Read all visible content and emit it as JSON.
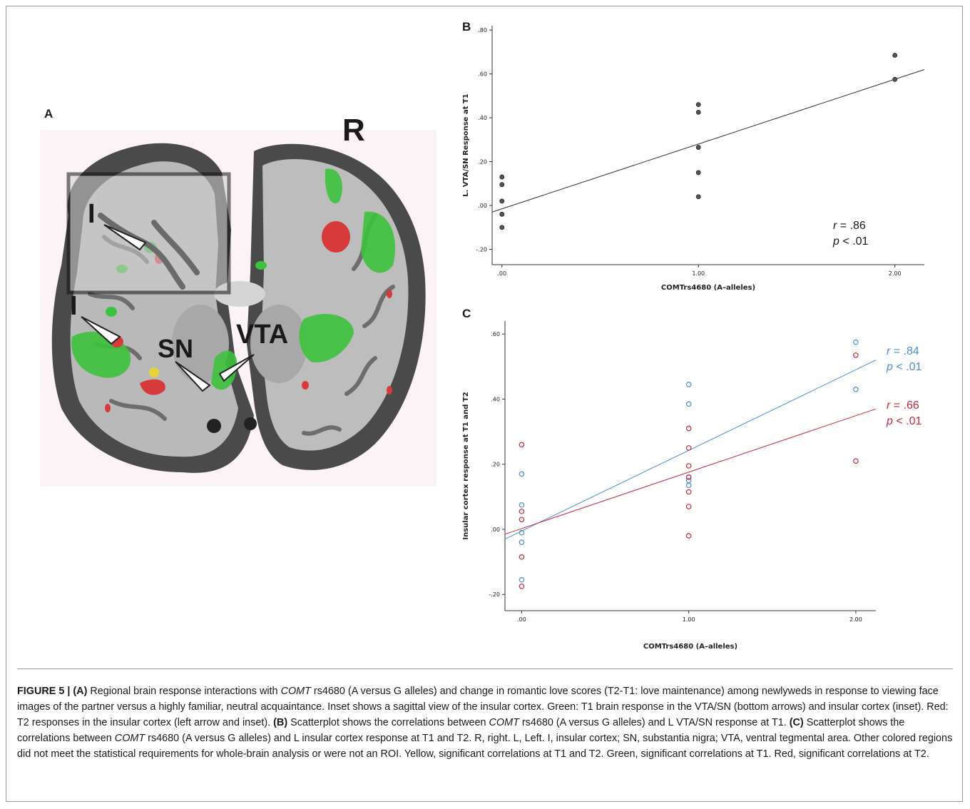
{
  "panels": {
    "a_letter": "A",
    "b_letter": "B",
    "c_letter": "C"
  },
  "brain": {
    "side_label": "R",
    "labels": {
      "insula_inset": "I",
      "insula": "I",
      "sn": "SN",
      "vta": "VTA"
    },
    "colors": {
      "t1": "#3dc23d",
      "t2": "#d63a3a",
      "both": "#e6d33a"
    }
  },
  "chart_data": [
    {
      "type": "scatter",
      "panel": "B",
      "xlabel": "COMTrs4680 (A–alleles)",
      "ylabel": "L. VTA/SN Response at T1",
      "xlim": [
        -0.05,
        2.15
      ],
      "ylim": [
        -0.27,
        0.82
      ],
      "x_ticks": [
        0,
        1,
        2
      ],
      "x_tick_labels": [
        ".00",
        "1.00",
        "2.00"
      ],
      "y_ticks": [
        -0.2,
        0,
        0.2,
        0.4,
        0.6,
        0.8
      ],
      "y_tick_labels": [
        "-.20",
        ".00",
        ".20",
        ".40",
        ".60",
        ".80"
      ],
      "series": [
        {
          "color": "#555555",
          "points": [
            [
              0,
              0.13
            ],
            [
              0,
              0.095
            ],
            [
              0,
              0.02
            ],
            [
              0,
              -0.04
            ],
            [
              0,
              -0.1
            ],
            [
              1,
              0.46
            ],
            [
              1,
              0.425
            ],
            [
              1,
              0.265
            ],
            [
              1,
              0.15
            ],
            [
              1,
              0.04
            ],
            [
              2,
              0.685
            ],
            [
              2,
              0.575
            ]
          ],
          "fit_line": [
            [
              -0.05,
              -0.03
            ],
            [
              2.15,
              0.62
            ]
          ],
          "annotation": {
            "r_label": "r",
            "r_value": " = .86",
            "p_label": "p",
            "p_value": " < .01"
          }
        }
      ]
    },
    {
      "type": "scatter",
      "panel": "C",
      "xlabel": "COMTrs4680 (A–alleles)",
      "ylabel": "Insular cortex response at T1 and T2",
      "xlim": [
        -0.1,
        2.12
      ],
      "ylim": [
        -0.25,
        0.64
      ],
      "x_ticks": [
        0,
        1,
        2
      ],
      "x_tick_labels": [
        ".00",
        "1.00",
        "2.00"
      ],
      "y_ticks": [
        -0.2,
        0,
        0.2,
        0.4,
        0.6
      ],
      "y_tick_labels": [
        "-.20",
        ".00",
        ".20",
        ".40",
        ".60"
      ],
      "series": [
        {
          "color": "#4a8fd6",
          "points": [
            [
              0,
              0.17
            ],
            [
              0,
              0.075
            ],
            [
              0,
              -0.01
            ],
            [
              0,
              -0.04
            ],
            [
              0,
              -0.155
            ],
            [
              1,
              0.445
            ],
            [
              1,
              0.385
            ],
            [
              1,
              0.16
            ],
            [
              1,
              0.15
            ],
            [
              1,
              0.135
            ],
            [
              2,
              0.575
            ],
            [
              2,
              0.43
            ]
          ],
          "fit_line": [
            [
              -0.1,
              -0.03
            ],
            [
              2.12,
              0.52
            ]
          ],
          "annotation": {
            "r_label": "r",
            "r_value": " = .84",
            "p_label": "p",
            "p_value": " < .01"
          }
        },
        {
          "color": "#c8283c",
          "points": [
            [
              0,
              0.26
            ],
            [
              0,
              0.055
            ],
            [
              0,
              0.03
            ],
            [
              0,
              -0.085
            ],
            [
              0,
              -0.175
            ],
            [
              1,
              0.31
            ],
            [
              1,
              0.25
            ],
            [
              1,
              0.195
            ],
            [
              1,
              0.16
            ],
            [
              1,
              0.115
            ],
            [
              1,
              0.07
            ],
            [
              1,
              -0.02
            ],
            [
              2,
              0.535
            ],
            [
              2,
              0.21
            ]
          ],
          "fit_line": [
            [
              -0.1,
              -0.015
            ],
            [
              2.12,
              0.37
            ]
          ],
          "annotation": {
            "r_label": "r",
            "r_value": " = .66",
            "p_label": "p",
            "p_value": " < .01"
          }
        }
      ]
    }
  ],
  "caption": {
    "fig_label": "FIGURE 5 | ",
    "a_tag": "(A)",
    "t1": " Regional brain response interactions with ",
    "comt1": "COMT",
    "t2": " rs4680 (A versus G alleles) and change in romantic love scores (T2-T1: love maintenance) among newlyweds in response to viewing face images of the partner versus a highly familiar, neutral acquaintance. Inset shows a sagittal view of the insular cortex. Green: T1 brain response in the VTA/SN (bottom arrows) and insular cortex (inset). Red: T2 responses in the insular cortex (left arrow and inset). ",
    "b_tag": "(B)",
    "t3": " Scatterplot shows the correlations between ",
    "comt2": "COMT",
    "t4": " rs4680 (A versus G alleles) and L VTA/SN response at T1. ",
    "c_tag": "(C)",
    "t5": " Scatterplot shows the correlations between ",
    "comt3": "COMT",
    "t6": " rs4680 (A versus G alleles) and L insular cortex response at T1 and T2. R, right. L, Left. I, insular cortex; SN, substantia nigra; VTA, ventral tegmental area. Other colored regions did not meet the statistical requirements for whole-brain analysis or were not an ROI. Yellow, significant correlations at T1 and T2. Green, significant correlations at T1. Red, significant correlations at T2."
  }
}
